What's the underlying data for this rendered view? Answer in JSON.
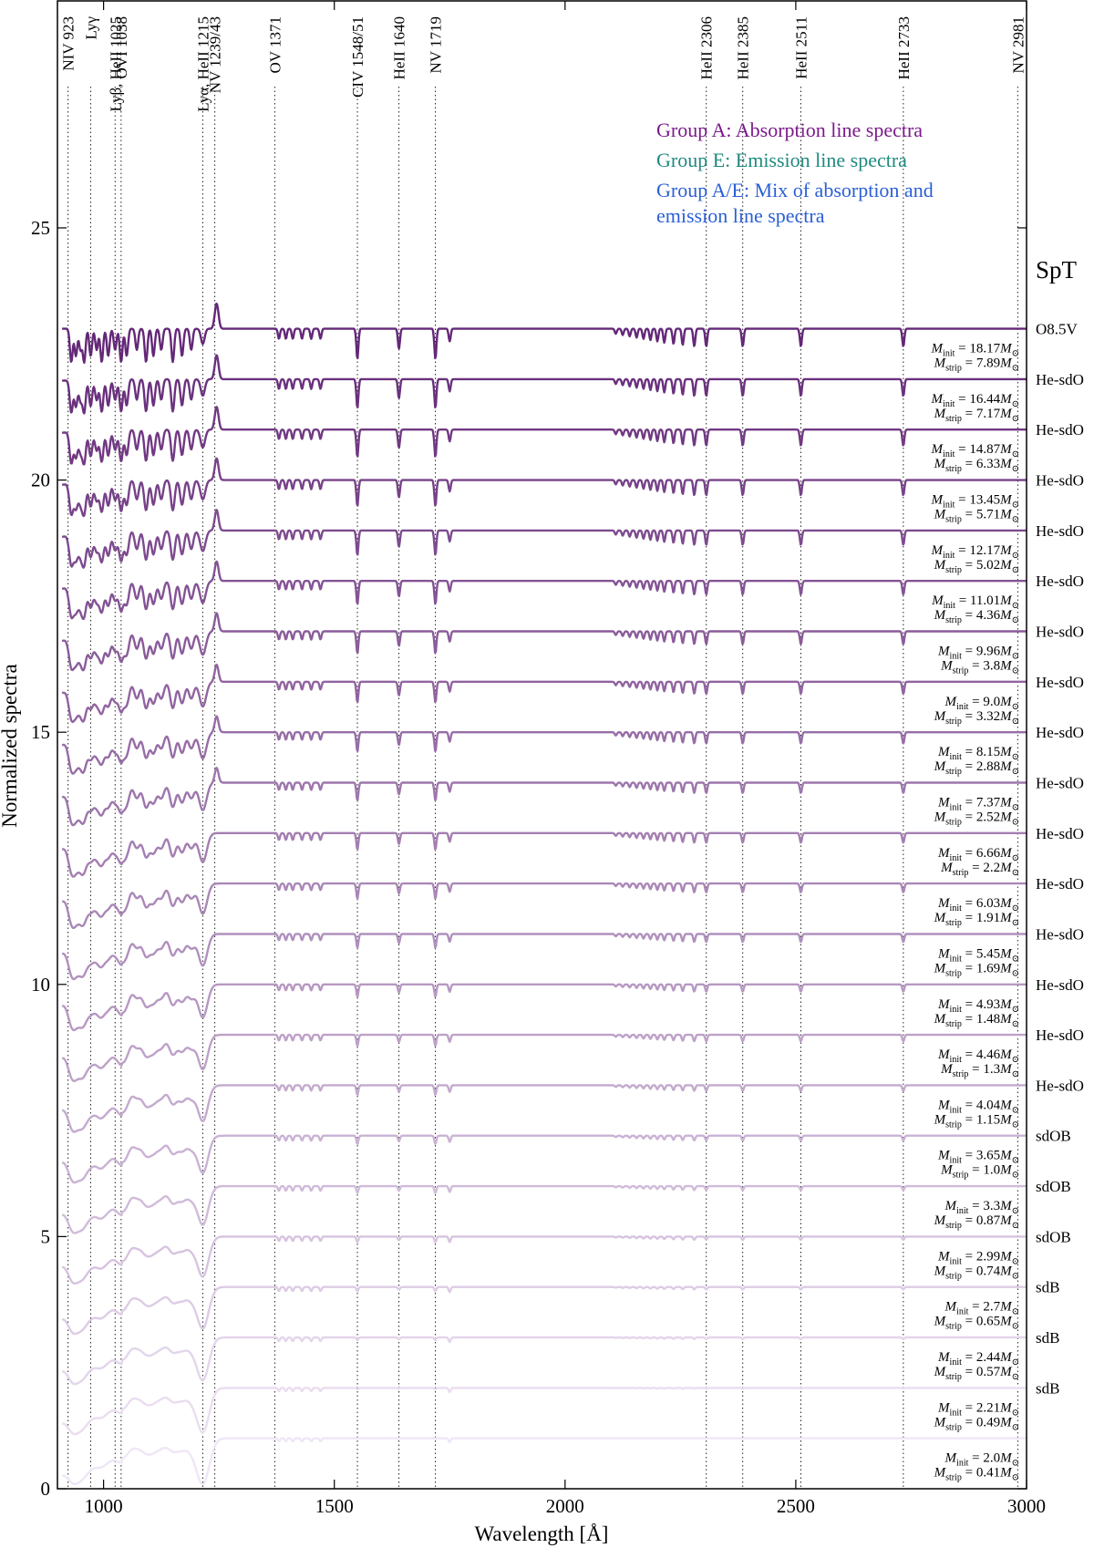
{
  "chart_data": {
    "type": "line",
    "title": "",
    "xlabel": "Wavelength [Å]",
    "ylabel": "Normalized spectra",
    "xlim": [
      900,
      3000
    ],
    "ylim": [
      0,
      29.5
    ],
    "xticks": [
      1000,
      1500,
      2000,
      2500,
      3000
    ],
    "yticks": [
      0,
      5,
      10,
      15,
      20,
      25
    ],
    "ytick_labels": [
      "0",
      "5",
      "10",
      "15",
      "20",
      "25"
    ],
    "grid": false,
    "offset_per_spectrum": 1,
    "spt_header": "SpT",
    "lines": [
      {
        "label": "NIV 923",
        "x": 923
      },
      {
        "label": "Lyγ",
        "x": 972
      },
      {
        "label": "Lyβ, HeII 1025",
        "x": 1025
      },
      {
        "label": "OVI 1038",
        "x": 1038
      },
      {
        "label": "Lyα, HeII 1215",
        "x": 1215
      },
      {
        "label": "NV 1239/43",
        "x": 1241
      },
      {
        "label": "OV 1371",
        "x": 1371
      },
      {
        "label": "CIV 1548/51",
        "x": 1550
      },
      {
        "label": "HeII 1640",
        "x": 1640
      },
      {
        "label": "NV 1719",
        "x": 1719
      },
      {
        "label": "HeII 2306",
        "x": 2306
      },
      {
        "label": "HeII 2385",
        "x": 2385
      },
      {
        "label": "HeII 2511",
        "x": 2511
      },
      {
        "label": "HeII 2733",
        "x": 2733
      },
      {
        "label": "NV 2981",
        "x": 2981
      }
    ],
    "legend": [
      {
        "text": "Group A: Absorption line spectra",
        "color": "#7b1a8c"
      },
      {
        "text": "Group E: Emission line spectra",
        "color": "#1f8a80"
      },
      {
        "text": "Group A/E: Mix of absorption and",
        "color": "#2a5fd6"
      },
      {
        "text": "emission line spectra",
        "color": "#2a5fd6"
      }
    ],
    "legend_placement": "top-right",
    "colormap": "purples",
    "series": [
      {
        "spt": "O8.5V",
        "m_init": "18.17",
        "m_strip": "7.89",
        "offset": 22
      },
      {
        "spt": "He-sdO",
        "m_init": "16.44",
        "m_strip": "7.17",
        "offset": 21
      },
      {
        "spt": "He-sdO",
        "m_init": "14.87",
        "m_strip": "6.33",
        "offset": 20
      },
      {
        "spt": "He-sdO",
        "m_init": "13.45",
        "m_strip": "5.71",
        "offset": 19
      },
      {
        "spt": "He-sdO",
        "m_init": "12.17",
        "m_strip": "5.02",
        "offset": 18
      },
      {
        "spt": "He-sdO",
        "m_init": "11.01",
        "m_strip": "4.36",
        "offset": 17
      },
      {
        "spt": "He-sdO",
        "m_init": "9.96",
        "m_strip": "3.8",
        "offset": 16
      },
      {
        "spt": "He-sdO",
        "m_init": "9.0",
        "m_strip": "3.32",
        "offset": 15
      },
      {
        "spt": "He-sdO",
        "m_init": "8.15",
        "m_strip": "2.88",
        "offset": 14
      },
      {
        "spt": "He-sdO",
        "m_init": "7.37",
        "m_strip": "2.52",
        "offset": 13
      },
      {
        "spt": "He-sdO",
        "m_init": "6.66",
        "m_strip": "2.2",
        "offset": 12
      },
      {
        "spt": "He-sdO",
        "m_init": "6.03",
        "m_strip": "1.91",
        "offset": 11
      },
      {
        "spt": "He-sdO",
        "m_init": "5.45",
        "m_strip": "1.69",
        "offset": 10
      },
      {
        "spt": "He-sdO",
        "m_init": "4.93",
        "m_strip": "1.48",
        "offset": 9
      },
      {
        "spt": "He-sdO",
        "m_init": "4.46",
        "m_strip": "1.3",
        "offset": 8
      },
      {
        "spt": "He-sdO",
        "m_init": "4.04",
        "m_strip": "1.15",
        "offset": 7
      },
      {
        "spt": "sdOB",
        "m_init": "3.65",
        "m_strip": "1.0",
        "offset": 6
      },
      {
        "spt": "sdOB",
        "m_init": "3.3",
        "m_strip": "0.87",
        "offset": 5
      },
      {
        "spt": "sdOB",
        "m_init": "2.99",
        "m_strip": "0.74",
        "offset": 4
      },
      {
        "spt": "sdB",
        "m_init": "2.7",
        "m_strip": "0.65",
        "offset": 3
      },
      {
        "spt": "sdB",
        "m_init": "2.44",
        "m_strip": "0.57",
        "offset": 2
      },
      {
        "spt": "sdB",
        "m_init": "2.21",
        "m_strip": "0.49",
        "offset": 1
      },
      {
        "spt": "",
        "m_init": "2.0",
        "m_strip": "0.41",
        "offset": 0
      }
    ]
  }
}
